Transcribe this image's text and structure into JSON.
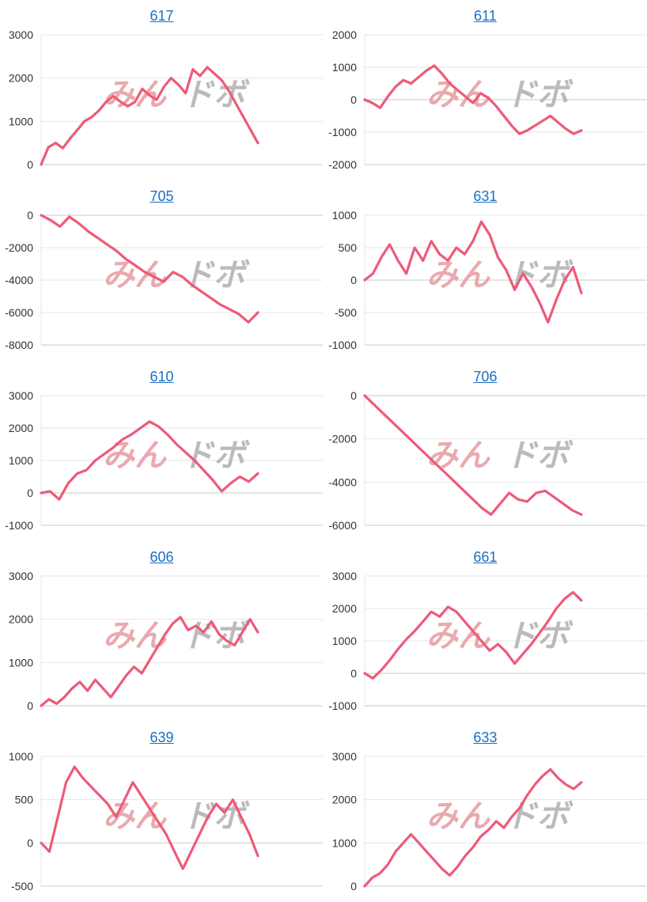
{
  "theme": {
    "line_color": "#ee5a78",
    "grid_color": "#e6e6e6",
    "axis_color": "#cccccc",
    "link_color": "#1a6fc4",
    "wm_color_1": "#e8a0a6",
    "wm_color_2": "#b4b4b4"
  },
  "watermark": {
    "part1": "みん",
    "part2": "ドボ"
  },
  "chart_data": [
    {
      "type": "line",
      "title": "617",
      "ylim": [
        0,
        3000
      ],
      "ticks": [
        0,
        1000,
        2000,
        3000
      ],
      "values": [
        0,
        400,
        500,
        380,
        600,
        800,
        1000,
        1100,
        1250,
        1450,
        1580,
        1450,
        1350,
        1450,
        1750,
        1600,
        1500,
        1800,
        2000,
        1850,
        1650,
        2200,
        2050,
        2250,
        2100,
        1950,
        1700,
        1400,
        1100,
        800,
        500
      ]
    },
    {
      "type": "line",
      "title": "611",
      "ylim": [
        -2000,
        2000
      ],
      "ticks": [
        -2000,
        -1000,
        0,
        1000,
        2000
      ],
      "values": [
        0,
        -100,
        -250,
        100,
        400,
        600,
        500,
        700,
        900,
        1050,
        800,
        500,
        300,
        100,
        -100,
        200,
        50,
        -200,
        -500,
        -800,
        -1050,
        -950,
        -800,
        -650,
        -500,
        -700,
        -900,
        -1050,
        -950
      ]
    },
    {
      "type": "line",
      "title": "705",
      "ylim": [
        -8000,
        0
      ],
      "ticks": [
        -8000,
        -6000,
        -4000,
        -2000,
        0
      ],
      "values": [
        0,
        -300,
        -700,
        -100,
        -500,
        -1000,
        -1400,
        -1800,
        -2200,
        -2700,
        -3100,
        -3500,
        -3800,
        -4100,
        -3500,
        -3800,
        -4300,
        -4700,
        -5100,
        -5500,
        -5800,
        -6100,
        -6600,
        -6000
      ]
    },
    {
      "type": "line",
      "title": "631",
      "ylim": [
        -1000,
        1000
      ],
      "ticks": [
        -1000,
        -500,
        0,
        500,
        1000
      ],
      "values": [
        0,
        100,
        350,
        550,
        300,
        100,
        500,
        300,
        600,
        400,
        300,
        500,
        400,
        600,
        900,
        700,
        350,
        150,
        -150,
        100,
        -100,
        -350,
        -650,
        -300,
        0,
        200,
        -200
      ]
    },
    {
      "type": "line",
      "title": "610",
      "ylim": [
        -1000,
        3000
      ],
      "ticks": [
        -1000,
        0,
        1000,
        2000,
        3000
      ],
      "values": [
        0,
        50,
        -200,
        300,
        600,
        700,
        1000,
        1200,
        1400,
        1650,
        1800,
        2000,
        2200,
        2050,
        1800,
        1500,
        1250,
        1000,
        700,
        400,
        50,
        300,
        500,
        350,
        600
      ]
    },
    {
      "type": "line",
      "title": "706",
      "ylim": [
        -6000,
        0
      ],
      "ticks": [
        -6000,
        -4000,
        -2000,
        0
      ],
      "values": [
        0,
        -400,
        -800,
        -1200,
        -1600,
        -2000,
        -2400,
        -2800,
        -3200,
        -3600,
        -4000,
        -4400,
        -4800,
        -5200,
        -5500,
        -5000,
        -4500,
        -4800,
        -4900,
        -4500,
        -4400,
        -4700,
        -5000,
        -5300,
        -5500
      ]
    },
    {
      "type": "line",
      "title": "606",
      "ylim": [
        0,
        3000
      ],
      "ticks": [
        0,
        1000,
        2000,
        3000
      ],
      "values": [
        0,
        150,
        50,
        200,
        400,
        550,
        350,
        600,
        400,
        200,
        450,
        700,
        900,
        750,
        1050,
        1350,
        1650,
        1900,
        2050,
        1750,
        1850,
        1700,
        1950,
        1650,
        1500,
        1400,
        1700,
        2000,
        1700
      ]
    },
    {
      "type": "line",
      "title": "661",
      "ylim": [
        -1000,
        3000
      ],
      "ticks": [
        -1000,
        0,
        1000,
        2000,
        3000
      ],
      "values": [
        0,
        -150,
        100,
        400,
        750,
        1050,
        1300,
        1600,
        1900,
        1750,
        2050,
        1900,
        1600,
        1300,
        1000,
        700,
        900,
        650,
        300,
        600,
        900,
        1250,
        1600,
        2000,
        2300,
        2500,
        2250
      ]
    },
    {
      "type": "line",
      "title": "639",
      "ylim": [
        -500,
        1000
      ],
      "ticks": [
        -500,
        0,
        500,
        1000
      ],
      "values": [
        0,
        -100,
        300,
        700,
        880,
        750,
        650,
        550,
        450,
        300,
        500,
        700,
        550,
        400,
        250,
        100,
        -100,
        -300,
        -100,
        100,
        300,
        450,
        350,
        500,
        300,
        100,
        -150
      ]
    },
    {
      "type": "line",
      "title": "633",
      "ylim": [
        0,
        3000
      ],
      "ticks": [
        0,
        1000,
        2000,
        3000
      ],
      "values": [
        0,
        200,
        300,
        500,
        800,
        1000,
        1200,
        1000,
        800,
        600,
        400,
        250,
        450,
        700,
        900,
        1150,
        1300,
        1500,
        1350,
        1600,
        1800,
        2100,
        2350,
        2550,
        2700,
        2500,
        2350,
        2250,
        2400
      ]
    }
  ]
}
